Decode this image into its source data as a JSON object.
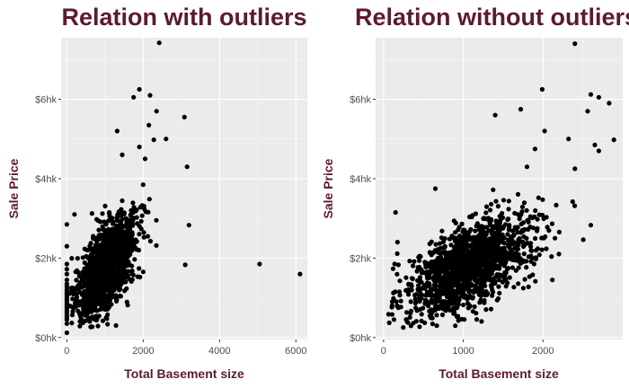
{
  "colors": {
    "title": "#5c1a33",
    "panel_bg": "#ebebeb",
    "grid_major": "#ffffff",
    "grid_minor": "#f5f5f5",
    "points": "#000000",
    "tick_text": "#4d4d4d"
  },
  "chart_data": [
    {
      "type": "scatter",
      "title": "Relation with outliers",
      "xlabel": "Total Basement size",
      "ylabel": "Sale Price",
      "xlim": [
        -150,
        6300
      ],
      "ylim": [
        -5,
        755
      ],
      "x_ticks": [
        0,
        2000,
        4000,
        6000
      ],
      "x_tick_labels": [
        "0",
        "2000",
        "4000",
        "6000"
      ],
      "y_ticks": [
        0,
        200,
        400,
        600
      ],
      "y_tick_labels": [
        "$0hk",
        "$2hk",
        "$4hk",
        "$6hk"
      ],
      "grid": true,
      "distribution": {
        "center": [
          1050,
          180
        ],
        "spread": [
          360,
          62
        ],
        "correlation": 0.55,
        "count": 1400
      },
      "zero_basement_points": [
        [
          0,
          12
        ],
        [
          0,
          35
        ],
        [
          0,
          45
        ],
        [
          0,
          50
        ],
        [
          0,
          55
        ],
        [
          0,
          60
        ],
        [
          0,
          65
        ],
        [
          0,
          70
        ],
        [
          0,
          75
        ],
        [
          0,
          80
        ],
        [
          0,
          85
        ],
        [
          0,
          90
        ],
        [
          0,
          95
        ],
        [
          0,
          100
        ],
        [
          0,
          105
        ],
        [
          0,
          110
        ],
        [
          0,
          115
        ],
        [
          0,
          120
        ],
        [
          0,
          128
        ],
        [
          0,
          135
        ],
        [
          0,
          145
        ],
        [
          0,
          160
        ],
        [
          0,
          172
        ],
        [
          0,
          185
        ],
        [
          0,
          230
        ],
        [
          0,
          285
        ]
      ],
      "notable_points": [
        [
          2440,
          755
        ],
        [
          2420,
          742
        ],
        [
          1900,
          625
        ],
        [
          2180,
          610
        ],
        [
          1750,
          605
        ],
        [
          2350,
          570
        ],
        [
          3080,
          555
        ],
        [
          2150,
          535
        ],
        [
          2600,
          500
        ],
        [
          2280,
          498
        ],
        [
          3150,
          430
        ],
        [
          1450,
          460
        ],
        [
          2000,
          385
        ],
        [
          3200,
          283
        ],
        [
          3100,
          183
        ],
        [
          5050,
          185
        ],
        [
          6110,
          160
        ],
        [
          1320,
          520
        ],
        [
          1900,
          480
        ],
        [
          2050,
          450
        ],
        [
          200,
          310
        ]
      ]
    },
    {
      "type": "scatter",
      "title": "Relation without outliers",
      "xlabel": "Total Basement size",
      "ylabel": "Sale Price",
      "xlim": [
        -100,
        3000
      ],
      "ylim": [
        -5,
        755
      ],
      "x_ticks": [
        0,
        1000,
        2000
      ],
      "x_tick_labels": [
        "0",
        "1000",
        "2000"
      ],
      "y_ticks": [
        0,
        200,
        400,
        600
      ],
      "y_tick_labels": [
        "$0hk",
        "$2hk",
        "$4hk",
        "$6hk"
      ],
      "grid": true,
      "distribution": {
        "center": [
          1060,
          180
        ],
        "spread": [
          400,
          62
        ],
        "correlation": 0.6,
        "count": 1450
      },
      "notable_points": [
        [
          2440,
          755
        ],
        [
          2400,
          740
        ],
        [
          1990,
          625
        ],
        [
          2600,
          612
        ],
        [
          2700,
          605
        ],
        [
          2830,
          590
        ],
        [
          1720,
          575
        ],
        [
          2560,
          570
        ],
        [
          2890,
          498
        ],
        [
          2320,
          500
        ],
        [
          2700,
          470
        ],
        [
          2650,
          485
        ],
        [
          2020,
          520
        ],
        [
          1900,
          475
        ],
        [
          1400,
          560
        ],
        [
          2600,
          283
        ],
        [
          650,
          375
        ],
        [
          150,
          315
        ],
        [
          200,
          115
        ],
        [
          2200,
          210
        ],
        [
          2400,
          425
        ],
        [
          1800,
          430
        ]
      ]
    }
  ]
}
